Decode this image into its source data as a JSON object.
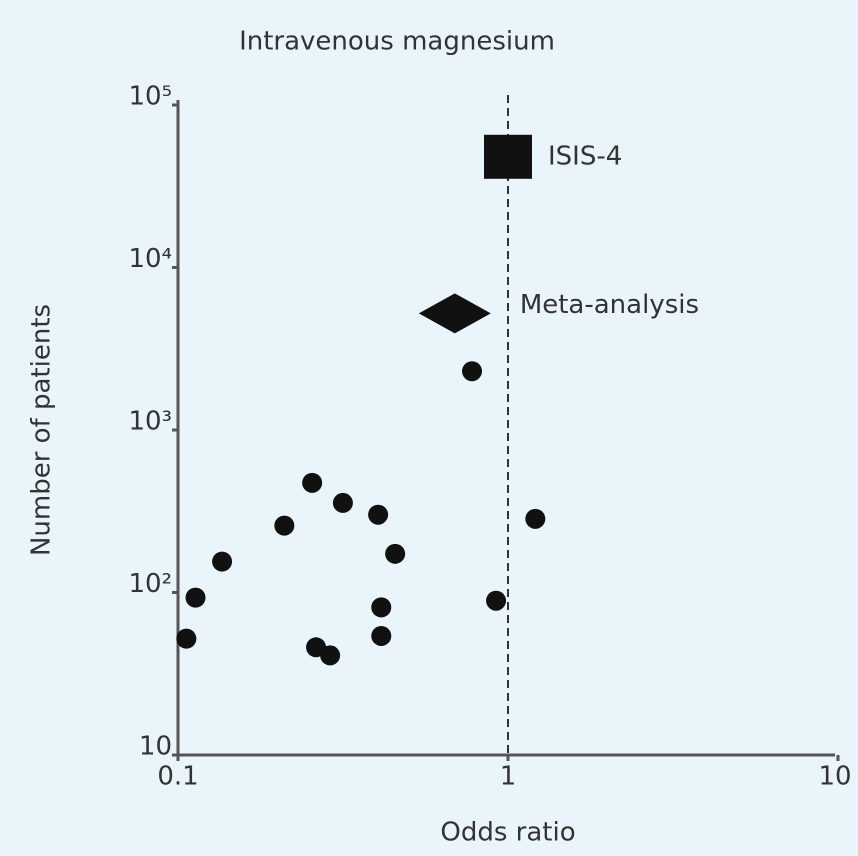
{
  "chart_data": {
    "type": "scatter",
    "title": "Intravenous magnesium",
    "x_label": "Odds ratio",
    "y_label": "Number of patients",
    "x_log": true,
    "y_log": true,
    "xlim": [
      0.1,
      10
    ],
    "xticks": [
      0.1,
      1,
      10
    ],
    "ylim": [
      10,
      100000
    ],
    "yticks": [
      10,
      {
        "value": 100,
        "label": "10²"
      },
      {
        "value": 1000,
        "label": "10³"
      },
      {
        "value": 10000,
        "label": "10⁴"
      },
      {
        "value": 100000,
        "label": "10⁵"
      }
    ],
    "reference_line_x": 1,
    "color": "#111111",
    "x": [
      0.106,
      0.113,
      0.136,
      0.21,
      0.255,
      0.316,
      0.404,
      0.455,
      0.413,
      0.413,
      0.262,
      0.289,
      0.778,
      0.92,
      1.21
    ],
    "y": [
      52,
      93,
      155,
      258,
      473,
      356,
      301,
      173,
      81,
      54,
      46,
      41,
      2300,
      89,
      284
    ],
    "annotations": [
      {
        "text": "ISIS-4",
        "x": 1.0,
        "y": 48000,
        "marker": "square"
      },
      {
        "text": "Meta-analysis",
        "x": 0.69,
        "y": 5220,
        "marker": "diamond"
      }
    ]
  }
}
